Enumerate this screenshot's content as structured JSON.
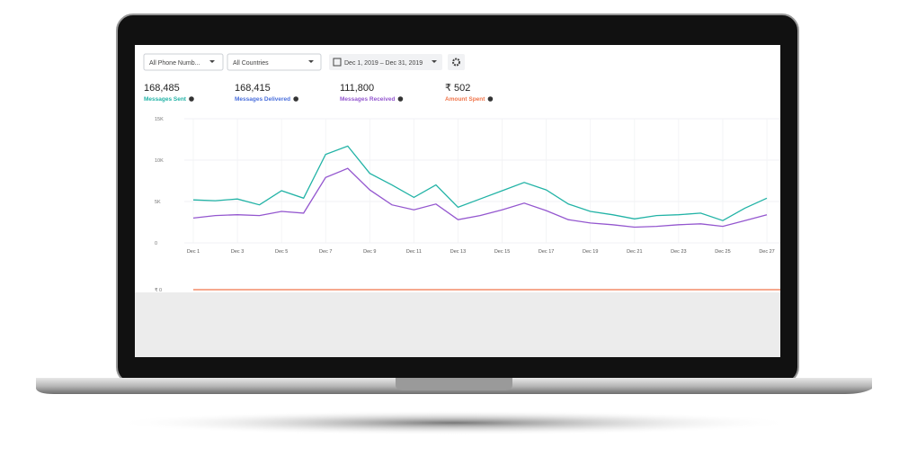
{
  "filters": {
    "phone": "All Phone Numb...",
    "country": "All Countries",
    "date_range": "Dec 1, 2019 – Dec 31, 2019"
  },
  "metrics": [
    {
      "value": "168,485",
      "label": "Messages Sent",
      "color": "#22b3a6"
    },
    {
      "value": "168,415",
      "label": "Messages Delivered",
      "color": "#4a6fdc"
    },
    {
      "value": "111,800",
      "label": "Messages Received",
      "color": "#9457cf"
    },
    {
      "value": "₹ 502",
      "label": "Amount Spent",
      "color": "#f0754a"
    }
  ],
  "chart_data": [
    {
      "type": "line",
      "categories": [
        "Dec 1",
        null,
        "Dec 3",
        null,
        "Dec 5",
        null,
        "Dec 7",
        null,
        "Dec 9",
        null,
        "Dec 11",
        null,
        "Dec 13",
        null,
        "Dec 15",
        null,
        "Dec 17",
        null,
        "Dec 19",
        null,
        "Dec 21",
        null,
        "Dec 23",
        null,
        "Dec 25",
        null,
        "Dec 27"
      ],
      "series": [
        {
          "color": "#22b3a6",
          "values": [
            5200,
            5100,
            5300,
            4600,
            6300,
            5400,
            10700,
            11700,
            8400,
            7000,
            5500,
            7000,
            4300,
            5300,
            6300,
            7300,
            6400,
            4700,
            3800,
            3400,
            2900,
            3300,
            3400,
            3600,
            2700,
            4200,
            5400
          ]
        },
        {
          "color": "#9457cf",
          "values": [
            3000,
            3300,
            3400,
            3300,
            3800,
            3600,
            7900,
            9000,
            6400,
            4600,
            4000,
            4700,
            2800,
            3300,
            4000,
            4800,
            3900,
            2800,
            2400,
            2200,
            1900,
            2000,
            2200,
            2300,
            2000,
            2700,
            3400
          ]
        }
      ],
      "ylim": [
        0,
        15000
      ],
      "yticks": [
        0,
        {
          "value": 5000,
          "label": "5K"
        },
        {
          "value": 10000,
          "label": "10K"
        },
        {
          "value": 15000,
          "label": "15K"
        }
      ],
      "grid": true
    },
    {
      "type": "line",
      "series": [
        {
          "color": "#f0754a",
          "values": [
            0,
            0,
            0,
            0,
            0,
            0,
            0,
            0,
            0,
            0,
            0,
            0,
            0,
            0,
            0,
            0,
            0,
            0,
            0,
            0,
            0,
            0,
            0,
            0,
            0,
            0,
            0
          ]
        }
      ],
      "ylim": [
        0,
        1
      ],
      "yticks": [
        {
          "value": 0,
          "label": "₹ 0"
        }
      ]
    }
  ]
}
